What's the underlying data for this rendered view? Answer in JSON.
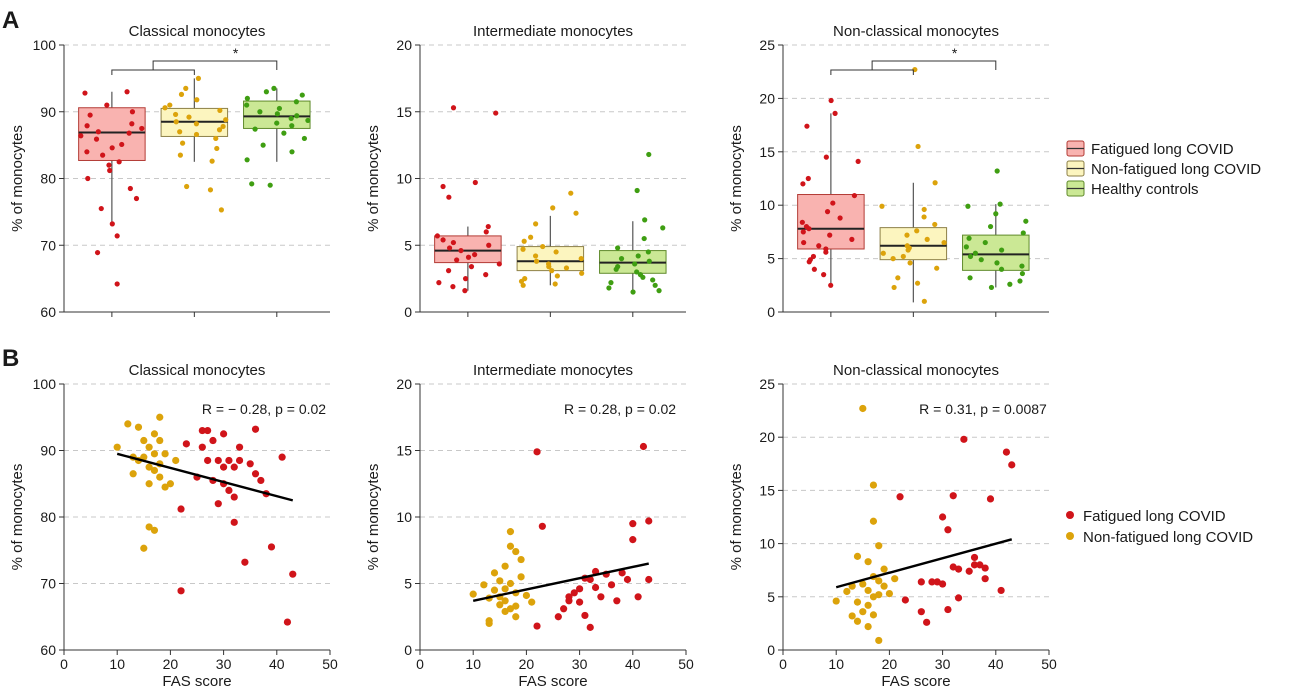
{
  "figure": {
    "panel_labels": [
      "A",
      "B"
    ],
    "colors": {
      "fatigued": "#d0141a",
      "nonfatigued": "#dca30b",
      "healthy": "#3f9e12",
      "fatigued_fill": "#f9b3b0",
      "nonfatigued_fill": "#fcf5bf",
      "healthy_fill": "#cbe895",
      "grid": "#c8c8c8",
      "axis": "#333333",
      "fit_line": "#000000"
    }
  },
  "legend_a": {
    "items": [
      {
        "label": "Fatigued long COVID",
        "fill": "#f9b3b0",
        "stroke": "#b33b35"
      },
      {
        "label": "Non-fatigued long COVID",
        "fill": "#fcf5bf",
        "stroke": "#8d8048"
      },
      {
        "label": "Healthy controls",
        "fill": "#cbe895",
        "stroke": "#5f8a2a"
      }
    ]
  },
  "legend_b": {
    "items": [
      {
        "label": "Fatigued long COVID",
        "color": "#d0141a"
      },
      {
        "label": "Non-fatigued long COVID",
        "color": "#dca30b"
      }
    ]
  },
  "chart_data": [
    {
      "type": "box",
      "title": "Classical monocytes",
      "ylabel": "% of monocytes",
      "ylim": [
        60,
        100
      ],
      "yticks": [
        60,
        70,
        80,
        90,
        100
      ],
      "groups": [
        "Fatigued long COVID",
        "Non-fatigued long COVID",
        "Healthy controls"
      ],
      "boxes": [
        {
          "min": 73.3,
          "q1": 82.7,
          "median": 86.9,
          "q3": 90.6,
          "max": 93.0
        },
        {
          "min": 82.5,
          "q1": 86.3,
          "median": 88.5,
          "q3": 90.5,
          "max": 95.0
        },
        {
          "min": 82.5,
          "q1": 87.5,
          "median": 89.3,
          "q3": 91.6,
          "max": 93.5
        }
      ],
      "points": [
        [
          93.0,
          92.8,
          91.0,
          90.0,
          89.5,
          88.2,
          87.9,
          87.5,
          87.0,
          86.8,
          86.4,
          85.9,
          85.1,
          84.6,
          84.0,
          83.5,
          82.5,
          82.0,
          81.2,
          80.0,
          78.5,
          77.0,
          75.5,
          73.2,
          71.4,
          68.9,
          64.2
        ],
        [
          95.0,
          93.5,
          92.6,
          91.8,
          91.0,
          90.6,
          90.2,
          89.6,
          89.2,
          88.8,
          88.5,
          88.2,
          87.8,
          87.3,
          87.0,
          86.6,
          86.0,
          85.3,
          84.5,
          83.5,
          82.6,
          78.8,
          78.3,
          75.3
        ],
        [
          93.5,
          93.0,
          92.5,
          92.0,
          91.5,
          91.0,
          90.5,
          90.0,
          89.7,
          89.4,
          89.0,
          88.7,
          88.3,
          87.9,
          87.4,
          86.8,
          86.0,
          85.0,
          84.0,
          82.8,
          79.2,
          79.0
        ]
      ],
      "significance": [
        {
          "from": 0,
          "to": [
            1,
            2
          ],
          "label": "*"
        }
      ]
    },
    {
      "type": "box",
      "title": "Intermediate monocytes",
      "ylabel": "% of monocytes",
      "ylim": [
        0,
        20
      ],
      "yticks": [
        0,
        5,
        10,
        15,
        20
      ],
      "groups": [
        "Fatigued long COVID",
        "Non-fatigued long COVID",
        "Healthy controls"
      ],
      "boxes": [
        {
          "min": 1.6,
          "q1": 3.7,
          "median": 4.6,
          "q3": 5.7,
          "max": 6.4
        },
        {
          "min": 2.0,
          "q1": 3.1,
          "median": 3.8,
          "q3": 4.9,
          "max": 7.2
        },
        {
          "min": 1.5,
          "q1": 2.9,
          "median": 3.7,
          "q3": 4.6,
          "max": 6.8
        }
      ],
      "points": [
        [
          15.3,
          14.9,
          9.7,
          9.4,
          8.6,
          6.4,
          6.0,
          5.7,
          5.4,
          5.2,
          5.0,
          4.8,
          4.6,
          4.3,
          4.1,
          3.9,
          3.6,
          3.4,
          3.1,
          2.8,
          2.5,
          2.2,
          1.9,
          1.6
        ],
        [
          8.9,
          7.8,
          7.4,
          6.6,
          5.6,
          5.3,
          4.9,
          4.7,
          4.5,
          4.2,
          4.0,
          3.8,
          3.6,
          3.4,
          3.3,
          3.1,
          2.9,
          2.7,
          2.5,
          2.3,
          2.1,
          2.0
        ],
        [
          11.8,
          9.1,
          6.9,
          6.3,
          5.5,
          4.8,
          4.5,
          4.2,
          4.0,
          3.8,
          3.6,
          3.4,
          3.2,
          3.0,
          2.8,
          2.6,
          2.4,
          2.2,
          2.0,
          1.8,
          1.6,
          1.5
        ]
      ],
      "significance": []
    },
    {
      "type": "box",
      "title": "Non-classical monocytes",
      "ylabel": "% of monocytes",
      "ylim": [
        0,
        25
      ],
      "yticks": [
        0,
        5,
        10,
        15,
        20,
        25
      ],
      "groups": [
        "Fatigued long COVID",
        "Non-fatigued long COVID",
        "Healthy controls"
      ],
      "boxes": [
        {
          "min": 2.5,
          "q1": 5.9,
          "median": 7.8,
          "q3": 11.0,
          "max": 18.6
        },
        {
          "min": 0.9,
          "q1": 4.9,
          "median": 6.2,
          "q3": 7.9,
          "max": 12.1
        },
        {
          "min": 2.3,
          "q1": 3.9,
          "median": 5.4,
          "q3": 7.2,
          "max": 10.1
        }
      ],
      "points": [
        [
          19.8,
          18.6,
          17.4,
          14.5,
          14.1,
          12.5,
          12.0,
          10.9,
          10.2,
          9.4,
          8.8,
          8.4,
          8.0,
          7.8,
          7.5,
          7.2,
          6.8,
          6.5,
          6.2,
          5.9,
          5.6,
          5.2,
          4.9,
          4.7,
          4.0,
          3.5,
          2.5
        ],
        [
          22.7,
          15.5,
          12.1,
          9.9,
          9.6,
          8.9,
          8.2,
          7.6,
          7.2,
          6.8,
          6.5,
          6.2,
          6.0,
          5.8,
          5.5,
          5.2,
          5.0,
          4.6,
          4.1,
          3.2,
          2.7,
          2.3,
          1.0
        ],
        [
          13.2,
          10.1,
          9.9,
          9.2,
          8.5,
          8.0,
          7.4,
          6.9,
          6.5,
          6.1,
          5.8,
          5.5,
          5.2,
          4.9,
          4.6,
          4.3,
          4.0,
          3.6,
          3.2,
          2.9,
          2.6,
          2.3
        ]
      ],
      "significance": [
        {
          "from": 0,
          "to": [
            1,
            2
          ],
          "label": "*"
        }
      ]
    },
    {
      "type": "scatter",
      "title": "Classical monocytes",
      "xlabel": "FAS score",
      "ylabel": "% of monocytes",
      "xlim": [
        0,
        50
      ],
      "ylim": [
        60,
        100
      ],
      "xticks": [
        0,
        10,
        20,
        30,
        40,
        50
      ],
      "yticks": [
        60,
        70,
        80,
        90,
        100
      ],
      "annotation": "R = − 0.28, p = 0.02",
      "fit": {
        "x": [
          10,
          43
        ],
        "y": [
          89.5,
          82.5
        ]
      },
      "series": [
        {
          "name": "Non-fatigued long COVID",
          "x": [
            10,
            12,
            13,
            13,
            14,
            14,
            15,
            15,
            15,
            16,
            16,
            16,
            16,
            17,
            17,
            17,
            17,
            18,
            18,
            18,
            18,
            19,
            19,
            20,
            21
          ],
          "y": [
            90.5,
            94.0,
            89.0,
            86.5,
            93.5,
            88.5,
            91.5,
            89.0,
            75.3,
            90.5,
            87.5,
            85.0,
            78.5,
            92.5,
            89.5,
            87.0,
            78.0,
            95.0,
            91.5,
            88.0,
            86.0,
            89.5,
            84.5,
            85.0,
            88.5
          ]
        },
        {
          "name": "Fatigued long COVID",
          "x": [
            22,
            22,
            23,
            25,
            26,
            26,
            27,
            27,
            28,
            28,
            29,
            29,
            30,
            30,
            30,
            31,
            31,
            32,
            32,
            32,
            33,
            33,
            34,
            35,
            36,
            36,
            37,
            38,
            39,
            41,
            42,
            43
          ],
          "y": [
            68.9,
            81.2,
            91.0,
            86.0,
            93.0,
            90.5,
            93.0,
            88.5,
            85.5,
            91.5,
            88.5,
            82.0,
            87.5,
            85.0,
            92.5,
            84.0,
            88.5,
            87.5,
            79.2,
            83.0,
            88.5,
            90.5,
            73.2,
            88.0,
            93.2,
            86.5,
            85.5,
            83.5,
            75.5,
            89.0,
            64.2,
            71.4
          ]
        }
      ]
    },
    {
      "type": "scatter",
      "title": "Intermediate monocytes",
      "xlabel": "FAS score",
      "ylabel": "% of monocytes",
      "xlim": [
        0,
        50
      ],
      "ylim": [
        0,
        20
      ],
      "xticks": [
        0,
        10,
        20,
        30,
        40,
        50
      ],
      "yticks": [
        0,
        5,
        10,
        15,
        20
      ],
      "annotation": "R = 0.28, p = 0.02",
      "fit": {
        "x": [
          10,
          43
        ],
        "y": [
          3.7,
          6.5
        ]
      },
      "series": [
        {
          "name": "Non-fatigued long COVID",
          "x": [
            10,
            12,
            13,
            13,
            13,
            14,
            14,
            15,
            15,
            15,
            16,
            16,
            16,
            16,
            17,
            17,
            17,
            17,
            18,
            18,
            18,
            18,
            19,
            19,
            20,
            21
          ],
          "y": [
            4.2,
            4.9,
            2.0,
            3.9,
            2.2,
            4.5,
            5.8,
            5.2,
            4.0,
            3.4,
            6.3,
            4.6,
            2.9,
            3.7,
            7.8,
            5.0,
            3.1,
            8.9,
            7.4,
            4.3,
            3.3,
            2.5,
            6.8,
            5.5,
            4.1,
            3.6
          ]
        },
        {
          "name": "Fatigued long COVID",
          "x": [
            22,
            22,
            23,
            26,
            27,
            28,
            28,
            29,
            30,
            30,
            31,
            31,
            32,
            32,
            33,
            33,
            34,
            35,
            36,
            37,
            38,
            39,
            40,
            40,
            41,
            42,
            43,
            43
          ],
          "y": [
            14.9,
            1.8,
            9.3,
            2.5,
            3.1,
            4.0,
            3.7,
            4.3,
            3.6,
            4.6,
            5.4,
            2.6,
            5.3,
            1.7,
            4.7,
            5.9,
            4.0,
            5.7,
            4.9,
            3.7,
            5.8,
            5.3,
            9.5,
            8.3,
            4.0,
            15.3,
            9.7,
            5.3
          ]
        }
      ]
    },
    {
      "type": "scatter",
      "title": "Non-classical monocytes",
      "xlabel": "FAS score",
      "ylabel": "% of monocytes",
      "xlim": [
        0,
        50
      ],
      "ylim": [
        0,
        25
      ],
      "xticks": [
        0,
        10,
        20,
        30,
        40,
        50
      ],
      "yticks": [
        0,
        5,
        10,
        15,
        20,
        25
      ],
      "annotation": "R = 0.31, p = 0.0087",
      "fit": {
        "x": [
          10,
          43
        ],
        "y": [
          5.9,
          10.4
        ]
      },
      "series": [
        {
          "name": "Non-fatigued long COVID",
          "x": [
            10,
            12,
            13,
            13,
            14,
            14,
            14,
            15,
            15,
            15,
            16,
            16,
            16,
            16,
            17,
            17,
            17,
            17,
            17,
            18,
            18,
            18,
            18,
            19,
            19,
            20,
            21
          ],
          "y": [
            4.6,
            5.5,
            3.2,
            6.0,
            8.8,
            4.5,
            2.7,
            22.7,
            6.2,
            3.6,
            8.3,
            5.6,
            4.2,
            2.2,
            15.5,
            12.1,
            6.9,
            5.0,
            3.3,
            9.8,
            6.5,
            5.2,
            0.9,
            7.6,
            6.0,
            5.3,
            6.7
          ]
        },
        {
          "name": "Fatigued long COVID",
          "x": [
            22,
            23,
            26,
            26,
            27,
            28,
            29,
            30,
            30,
            31,
            31,
            32,
            32,
            33,
            33,
            34,
            35,
            36,
            36,
            37,
            38,
            38,
            39,
            41,
            42,
            43
          ],
          "y": [
            14.4,
            4.7,
            6.4,
            3.6,
            2.6,
            6.4,
            6.4,
            12.5,
            6.2,
            3.8,
            11.3,
            14.5,
            7.8,
            7.6,
            4.9,
            19.8,
            7.4,
            8.7,
            8.0,
            8.0,
            7.7,
            6.7,
            14.2,
            5.6,
            18.6,
            17.4
          ]
        }
      ]
    }
  ]
}
